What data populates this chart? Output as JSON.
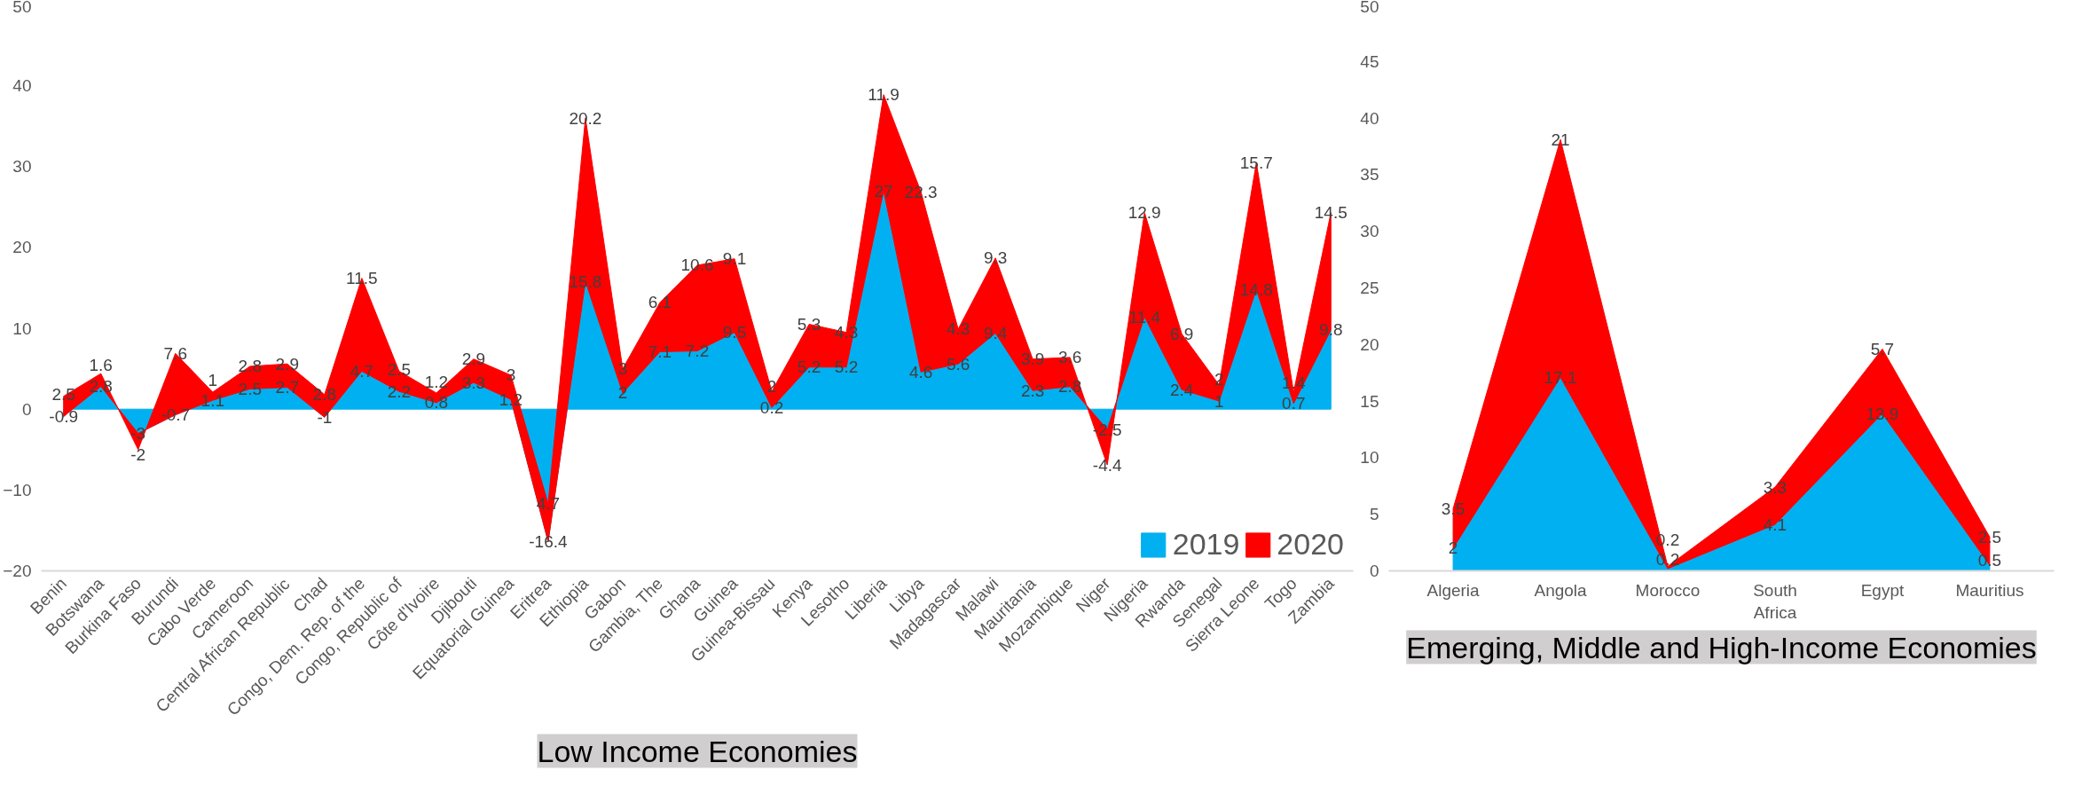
{
  "chart_data": [
    {
      "type": "area",
      "stacked": true,
      "data_labels": true,
      "grid": false,
      "legend": "bottom right",
      "categories": [
        "Benin",
        "Botswana",
        "Burkina Faso",
        "Burundi",
        "Cabo Verde",
        "Cameroon",
        "Central African Republic",
        "Chad",
        "Congo, Dem. Rep. of the",
        "Congo, Republic of",
        "Côte d'Ivoire",
        "Djibouti",
        "Equatorial Guinea",
        "Eritrea",
        "Ethiopia",
        "Gabon",
        "Gambia, The",
        "Ghana",
        "Guinea",
        "Guinea-Bissau",
        "Kenya",
        "Lesotho",
        "Liberia",
        "Libya",
        "Madagascar",
        "Malawi",
        "Mauritania",
        "Mozambique",
        "Niger",
        "Nigeria",
        "Rwanda",
        "Senegal",
        "Sierra Leone",
        "Togo",
        "Zambia"
      ],
      "series": [
        {
          "name": "2019",
          "color": "#00b0f0",
          "values": [
            -0.9,
            2.8,
            -3,
            -0.7,
            1.1,
            2.5,
            2.7,
            -1,
            4.7,
            2.2,
            0.8,
            3.3,
            1.2,
            -16.4,
            15.8,
            2,
            7.1,
            7.2,
            9.5,
            0.2,
            5.2,
            5.2,
            27,
            4.6,
            5.6,
            9.4,
            2.3,
            2.8,
            -2.5,
            11.4,
            2.4,
            1,
            14.8,
            0.7,
            9.8
          ]
        },
        {
          "name": "2020",
          "color": "#ff0000",
          "values": [
            2.5,
            1.6,
            -2,
            7.6,
            1,
            2.8,
            2.9,
            2.8,
            11.5,
            2.5,
            1.2,
            2.9,
            3,
            4.7,
            20.2,
            3,
            6.1,
            10.6,
            9.1,
            2,
            5.3,
            4.3,
            11.9,
            22.3,
            4.3,
            9.3,
            3.9,
            3.6,
            -4.4,
            12.9,
            6.9,
            2,
            15.7,
            1.4,
            14.5
          ]
        }
      ],
      "ylim": [
        -20,
        50
      ],
      "yticks": [
        -20,
        -10,
        0,
        10,
        20,
        30,
        40,
        50
      ],
      "annotations": [
        "Low Income Economies"
      ]
    },
    {
      "type": "area",
      "stacked": true,
      "data_labels": true,
      "grid": false,
      "categories": [
        "Algeria",
        "Angola",
        "Morocco",
        "South Africa",
        "Egypt",
        "Mauritius"
      ],
      "series": [
        {
          "name": "2019",
          "color": "#00b0f0",
          "values": [
            2,
            17.1,
            0.2,
            4.1,
            13.9,
            0.5
          ]
        },
        {
          "name": "2020",
          "color": "#ff0000",
          "values": [
            3.5,
            21,
            0.2,
            3.3,
            5.7,
            2.5
          ]
        }
      ],
      "ylim": [
        0,
        50
      ],
      "yticks": [
        0,
        5,
        10,
        15,
        20,
        25,
        30,
        35,
        40,
        45,
        50
      ],
      "annotations": [
        "Emerging, Middle and High-Income Economies"
      ]
    }
  ]
}
